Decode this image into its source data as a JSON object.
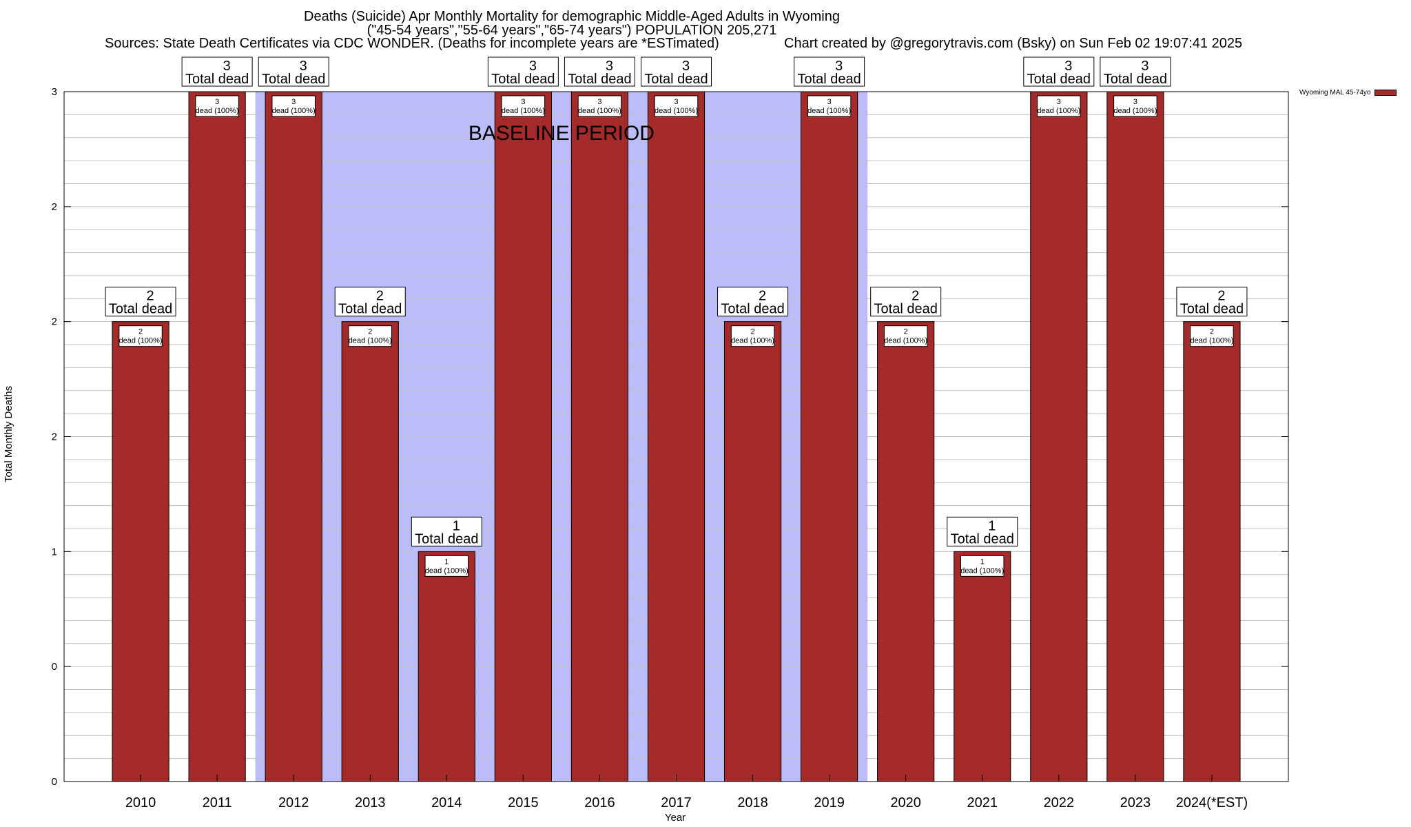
{
  "title": {
    "line1": "Deaths (Suicide) Apr Monthly Mortality for demographic Middle-Aged Adults in Wyoming",
    "line2": "(\"45-54 years\",\"55-64 years\",\"65-74 years\") POPULATION 205,271",
    "sources": "Sources: State Death Certificates via CDC WONDER. (Deaths for incomplete years are *ESTimated)",
    "credit": "Chart created by @gregorytravis.com (Bsky) on Sun Feb 02 19:07:41 2025"
  },
  "colors": {
    "bar": "#a52a2a",
    "baseline_shade": "#bcbcf8",
    "grid": "#c0c0c0"
  },
  "chart_data": {
    "type": "bar",
    "categories": [
      "2010",
      "2011",
      "2012",
      "2013",
      "2014",
      "2015",
      "2016",
      "2017",
      "2018",
      "2019",
      "2020",
      "2021",
      "2022",
      "2023",
      "2024(*EST)"
    ],
    "series": [
      {
        "name": "Wyoming MAL 45-74yo",
        "values": [
          2,
          3,
          3,
          2,
          1,
          3,
          3,
          3,
          2,
          3,
          2,
          1,
          3,
          3,
          2
        ]
      }
    ],
    "xlabel": "Year",
    "ylabel": "Total Monthly Deaths",
    "ylim": [
      0,
      3
    ],
    "yticks": [
      0,
      0.5,
      1,
      1.5,
      2,
      2.5,
      3
    ],
    "ytick_labels": [
      "0",
      "0",
      "1",
      "2",
      "2",
      "2",
      "3"
    ],
    "grid": true,
    "legend_position": "top-right",
    "top_label_line2": "Total dead",
    "inner_label_suffix": "dead (100%)",
    "baseline": {
      "label": "BASELINE PERIOD",
      "from_category": "2012",
      "to_category": "2019"
    }
  }
}
